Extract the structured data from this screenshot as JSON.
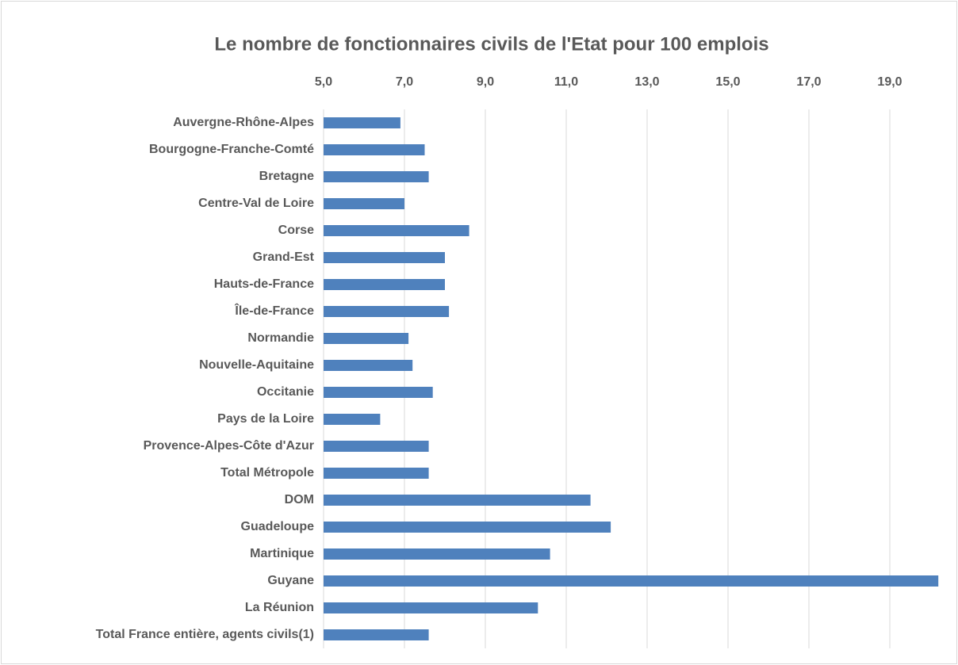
{
  "chart_data": {
    "type": "bar",
    "orientation": "horizontal",
    "title": "Le nombre de fonctionnaires civils de l'Etat pour 100 emplois",
    "categories": [
      "Auvergne-Rhône-Alpes",
      "Bourgogne-Franche-Comté",
      "Bretagne",
      "Centre-Val de Loire",
      "Corse",
      "Grand-Est",
      "Hauts-de-France",
      "Île-de-France",
      "Normandie",
      "Nouvelle-Aquitaine",
      "Occitanie",
      "Pays de la Loire",
      "Provence-Alpes-Côte d'Azur",
      "Total Métropole",
      "DOM",
      "Guadeloupe",
      "Martinique",
      "Guyane",
      "La Réunion",
      "Total France entière, agents civils(1)"
    ],
    "values": [
      6.9,
      7.5,
      7.6,
      7.0,
      8.6,
      8.0,
      8.0,
      8.1,
      7.1,
      7.2,
      7.7,
      6.4,
      7.6,
      7.6,
      11.6,
      12.1,
      10.6,
      20.2,
      10.3,
      7.6
    ],
    "color": "#4f81bd",
    "xlim": [
      5,
      20.2
    ],
    "xticks": [
      {
        "value": 5,
        "label": "5,0"
      },
      {
        "value": 7,
        "label": "7,0"
      },
      {
        "value": 9,
        "label": "9,0"
      },
      {
        "value": 11,
        "label": "11,0"
      },
      {
        "value": 13,
        "label": "13,0"
      },
      {
        "value": 15,
        "label": "15,0"
      },
      {
        "value": 17,
        "label": "17,0"
      },
      {
        "value": 19,
        "label": "19,0"
      }
    ],
    "grid": true
  }
}
